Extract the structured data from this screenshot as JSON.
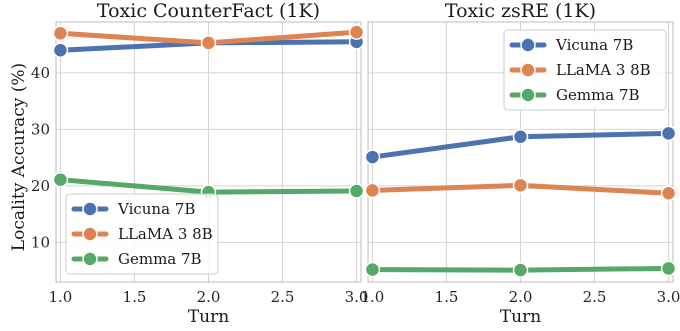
{
  "ylabel": "Locality Accuracy (%)",
  "chart_data": [
    {
      "type": "line",
      "title": "Toxic CounterFact (1K)",
      "xlabel": "Turn",
      "x": [
        1.0,
        2.0,
        3.0
      ],
      "xticks": [
        "1.0",
        "1.5",
        "2.0",
        "2.5",
        "3.0"
      ],
      "xlim": [
        0.97,
        3.03
      ],
      "yticks": [
        "10",
        "20",
        "30",
        "40"
      ],
      "ylim": [
        3,
        49
      ],
      "grid": true,
      "legend_position": "lower-left",
      "series": [
        {
          "name": "Vicuna 7B",
          "color": "#4c72b0",
          "values": [
            44.0,
            45.3,
            45.5
          ]
        },
        {
          "name": "LLaMA 3 8B",
          "color": "#dd8452",
          "values": [
            47.0,
            45.3,
            47.2
          ]
        },
        {
          "name": "Gemma 7B",
          "color": "#55a868",
          "values": [
            21.1,
            18.9,
            19.1
          ]
        }
      ]
    },
    {
      "type": "line",
      "title": "Toxic zsRE (1K)",
      "xlabel": "Turn",
      "x": [
        1.0,
        2.0,
        3.0
      ],
      "xticks": [
        "1.0",
        "1.5",
        "2.0",
        "2.5",
        "3.0"
      ],
      "xlim": [
        0.97,
        3.03
      ],
      "ylim": [
        3,
        49
      ],
      "grid": true,
      "legend_position": "upper-right",
      "series": [
        {
          "name": "Vicuna 7B",
          "color": "#4c72b0",
          "values": [
            25.1,
            28.7,
            29.3
          ]
        },
        {
          "name": "LLaMA 3 8B",
          "color": "#dd8452",
          "values": [
            19.2,
            20.1,
            18.7
          ]
        },
        {
          "name": "Gemma 7B",
          "color": "#55a868",
          "values": [
            5.2,
            5.1,
            5.4
          ]
        }
      ]
    }
  ]
}
